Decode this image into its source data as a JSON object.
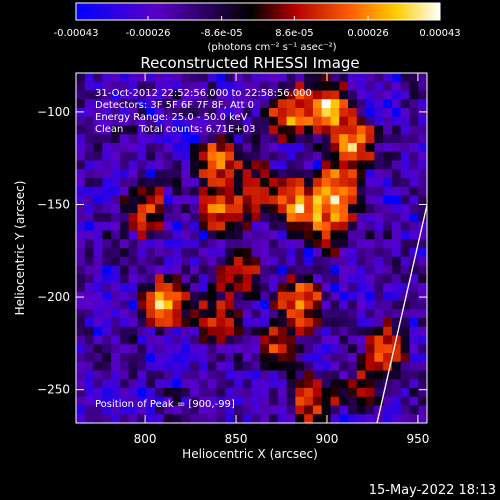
{
  "colorbar": {
    "tick_labels": [
      "-0.00043",
      "-0.00026",
      "-8.6e-05",
      "8.6e-05",
      "0.00026",
      "0.00043"
    ],
    "tick_values": [
      -0.00043,
      -0.00026,
      -8.6e-05,
      8.6e-05,
      0.00026,
      0.00043
    ],
    "range": [
      -0.00043,
      0.00043
    ],
    "unit_label": "(photons cm⁻² s⁻¹ asec⁻²)",
    "colors": [
      "#0000ff",
      "#5500bb",
      "#000000",
      "#aa0000",
      "#ff6600",
      "#ffcc00",
      "#ffffff"
    ]
  },
  "chart_data": {
    "type": "heatmap",
    "title": "Reconstructed RHESSI Image",
    "xlabel": "Heliocentric X (arcsec)",
    "ylabel": "Heliocentric Y (arcsec)",
    "xlim": [
      762,
      955
    ],
    "ylim": [
      -268,
      -79
    ],
    "x_ticks": [
      800,
      850,
      900,
      950
    ],
    "y_ticks": [
      -100,
      -150,
      -200,
      -250
    ],
    "x_tick_labels": [
      "800",
      "850",
      "900",
      "950"
    ],
    "y_tick_labels": [
      "−100",
      "−150",
      "−200",
      "−250"
    ],
    "peak": [
      900,
      -99
    ],
    "sources": [
      {
        "x": 900,
        "y": -99,
        "v": 1.0
      },
      {
        "x": 880,
        "y": -102,
        "v": 0.8
      },
      {
        "x": 913,
        "y": -118,
        "v": 0.8
      },
      {
        "x": 840,
        "y": -127,
        "v": 0.75
      },
      {
        "x": 885,
        "y": -152,
        "v": 0.8
      },
      {
        "x": 907,
        "y": -143,
        "v": 0.9
      },
      {
        "x": 843,
        "y": -152,
        "v": 0.75
      },
      {
        "x": 863,
        "y": -143,
        "v": 0.55
      },
      {
        "x": 900,
        "y": -163,
        "v": 0.55
      },
      {
        "x": 800,
        "y": -153,
        "v": 0.55
      },
      {
        "x": 810,
        "y": -203,
        "v": 0.8
      },
      {
        "x": 853,
        "y": -190,
        "v": 0.6
      },
      {
        "x": 885,
        "y": -203,
        "v": 0.65
      },
      {
        "x": 875,
        "y": -227,
        "v": 0.55
      },
      {
        "x": 840,
        "y": -212,
        "v": 0.5
      },
      {
        "x": 933,
        "y": -228,
        "v": 0.55
      },
      {
        "x": 893,
        "y": -255,
        "v": 0.45
      },
      {
        "x": 920,
        "y": -250,
        "v": 0.4
      }
    ]
  },
  "annotations": {
    "line1": "31-Oct-2012 22:52:56.000 to 22:58:56.000",
    "line2": "Detectors: 3F 5F 6F 7F 8F, Att 0",
    "line3": "Energy Range: 25.0 - 50.0 keV",
    "line4": "Clean     Total counts: 6.71E+03",
    "peak_text": "Position of Peak = [900,-99]"
  },
  "footer_timestamp": "15-May-2022 18:13"
}
